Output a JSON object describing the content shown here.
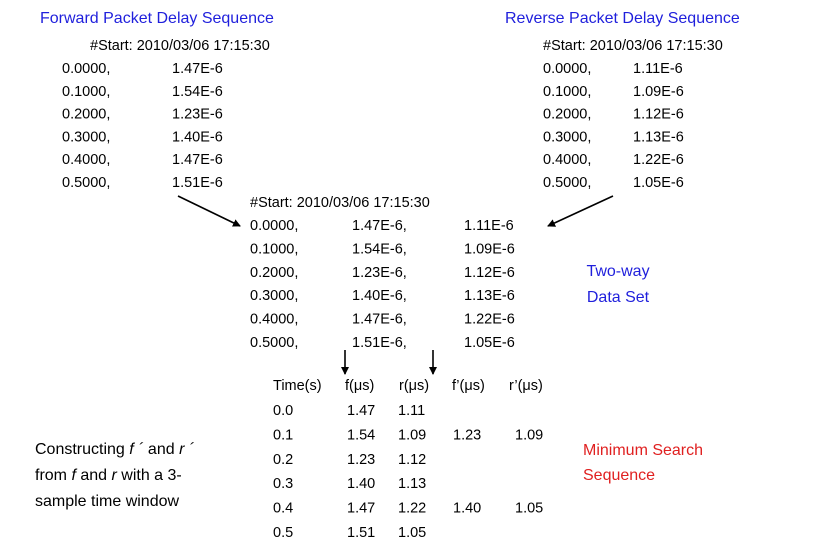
{
  "forward": {
    "title": "Forward Packet Delay Sequence",
    "start": "#Start: 2010/03/06 17:15:30",
    "rows": [
      [
        "0.0000,",
        "1.47E-6"
      ],
      [
        "0.1000,",
        "1.54E-6"
      ],
      [
        "0.2000,",
        "1.23E-6"
      ],
      [
        "0.3000,",
        "1.40E-6"
      ],
      [
        "0.4000,",
        "1.47E-6"
      ],
      [
        "0.5000,",
        "1.51E-6"
      ]
    ]
  },
  "reverse": {
    "title": "Reverse Packet Delay Sequence",
    "start": "#Start: 2010/03/06 17:15:30",
    "rows": [
      [
        "0.0000,",
        "1.11E-6"
      ],
      [
        "0.1000,",
        "1.09E-6"
      ],
      [
        "0.2000,",
        "1.12E-6"
      ],
      [
        "0.3000,",
        "1.13E-6"
      ],
      [
        "0.4000,",
        "1.22E-6"
      ],
      [
        "0.5000,",
        "1.05E-6"
      ]
    ]
  },
  "combined": {
    "start": "#Start: 2010/03/06 17:15:30",
    "rows": [
      [
        "0.0000,",
        "1.47E-6,",
        "1.11E-6"
      ],
      [
        "0.1000,",
        "1.54E-6,",
        "1.09E-6"
      ],
      [
        "0.2000,",
        "1.23E-6,",
        "1.12E-6"
      ],
      [
        "0.3000,",
        "1.40E-6,",
        "1.13E-6"
      ],
      [
        "0.4000,",
        "1.47E-6,",
        "1.22E-6"
      ],
      [
        "0.5000,",
        "1.51E-6,",
        "1.05E-6"
      ]
    ],
    "label": [
      "Two-way",
      "Data Set"
    ]
  },
  "table": {
    "header": [
      "Time(s)",
      "f(μs)",
      "r(μs)",
      "f’(μs)",
      "r’(μs)"
    ],
    "rows": [
      [
        "0.0",
        "1.47",
        "1.11"
      ],
      [
        "0.1",
        "1.54",
        "1.09",
        "1.23",
        "1.09"
      ],
      [
        "0.2",
        "1.23",
        "1.12"
      ],
      [
        "0.3",
        "1.40",
        "1.13"
      ],
      [
        "0.4",
        "1.47",
        "1.22",
        "1.40",
        "1.05"
      ],
      [
        "0.5",
        "1.51",
        "1.05"
      ]
    ]
  },
  "caption": [
    [
      "Constructing ",
      "f ´",
      " and ",
      "r ´"
    ],
    [
      "from ",
      "f",
      " and ",
      "r",
      " with a 3-"
    ],
    [
      "sample time window"
    ]
  ],
  "minimum": [
    "Minimum Search",
    "Sequence"
  ]
}
